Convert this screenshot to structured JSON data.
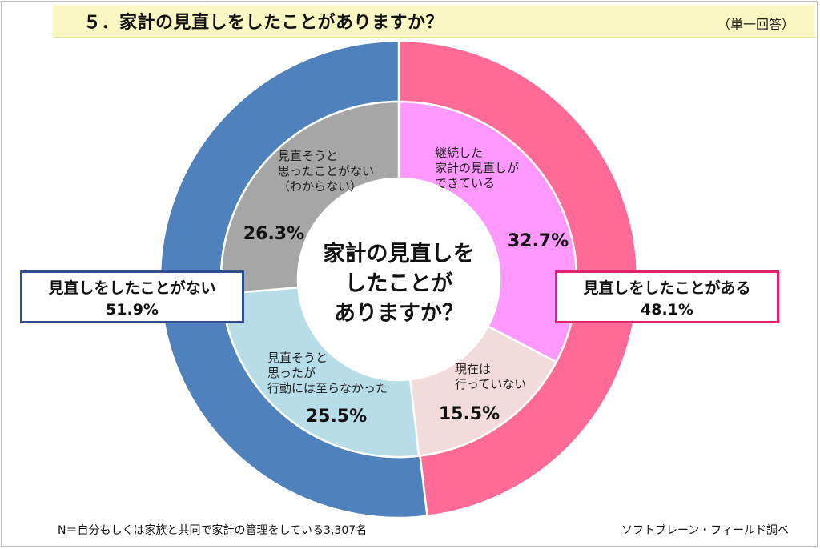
{
  "header": {
    "title": "５．家計の見直しをしたことがありますか？",
    "note": "（単一回答）"
  },
  "footer": {
    "note": "N＝自分もしくは家族と共同で家計の管理をしている3,307名",
    "source": "ソフトブレーン・フィールド調べ"
  },
  "chart_data": {
    "type": "pie",
    "subtype": "double-doughnut",
    "center_text": [
      "家計の見直しを",
      "したことが",
      "ありますか？"
    ],
    "outer_ring": [
      {
        "label": "見直しをしたことがある",
        "value": 48.1,
        "display": "48.1%",
        "color": "#ff6a96"
      },
      {
        "label": "見直しをしたことがない",
        "value": 51.9,
        "display": "51.9%",
        "color": "#4f81bd"
      }
    ],
    "inner_ring": [
      {
        "label": [
          "継続した",
          "家計の見直しが",
          "できている"
        ],
        "value": 32.7,
        "display": "32.7%",
        "color": "#ff99ff"
      },
      {
        "label": [
          "現在は",
          "行っていない"
        ],
        "value": 15.5,
        "display": "15.5%",
        "color": "#f2dcdb"
      },
      {
        "label": [
          "見直そうと",
          "思ったが",
          "行動には至らなかった"
        ],
        "value": 25.5,
        "display": "25.5%",
        "color": "#b7dde8"
      },
      {
        "label": [
          "見直そうと",
          "思ったことがない",
          "（わからない）"
        ],
        "value": 26.3,
        "display": "26.3%",
        "color": "#a6a6a6"
      }
    ]
  }
}
